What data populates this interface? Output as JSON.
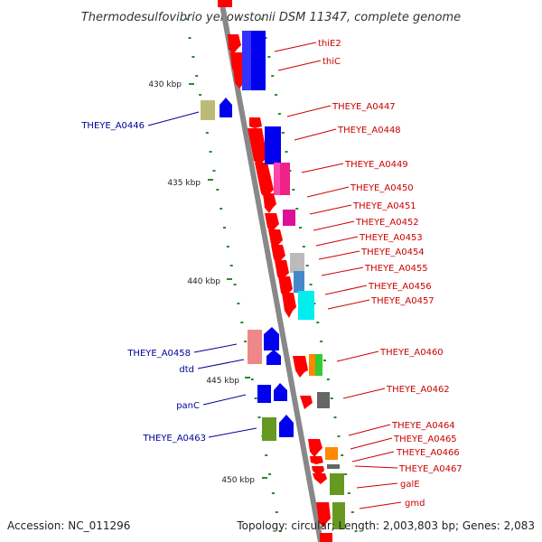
{
  "title": "Thermodesulfovibrio yellowstonii DSM 11347, complete genome",
  "footer": {
    "accession": "Accession: NC_011296",
    "summary": "Topology: circular; Length: 2,003,803 bp; Genes: 2,083"
  },
  "colors": {
    "right_label": "#cc0000",
    "left_label": "#000099",
    "backbone": "#888888",
    "tick": "#2a8a2a"
  },
  "scale_labels": [
    "430 kbp",
    "435 kbp",
    "440 kbp",
    "445 kbp",
    "450 kbp"
  ],
  "right_genes": [
    "thiE2",
    "thiC",
    "THEYE_A0447",
    "THEYE_A0448",
    "THEYE_A0449",
    "THEYE_A0450",
    "THEYE_A0451",
    "THEYE_A0452",
    "THEYE_A0453",
    "THEYE_A0454",
    "THEYE_A0455",
    "THEYE_A0456",
    "THEYE_A0457",
    "THEYE_A0460",
    "THEYE_A0462",
    "THEYE_A0464",
    "THEYE_A0465",
    "THEYE_A0466",
    "THEYE_A0467",
    "galE",
    "gmd"
  ],
  "left_genes": [
    "THEYE_A0446",
    "THEYE_A0458",
    "dtd",
    "panC",
    "THEYE_A0463"
  ]
}
